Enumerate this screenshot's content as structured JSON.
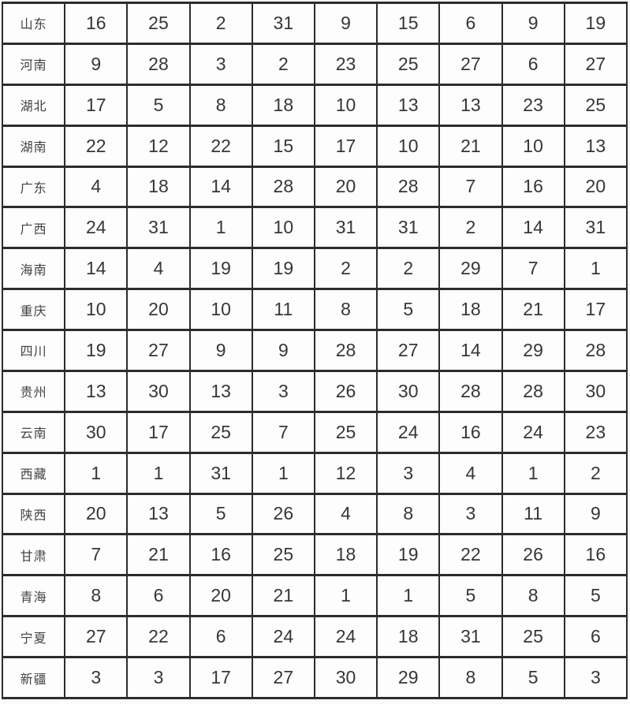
{
  "table": {
    "rows": [
      {
        "province": "山东",
        "values": [
          "16",
          "25",
          "2",
          "31",
          "9",
          "15",
          "6",
          "9",
          "19"
        ]
      },
      {
        "province": "河南",
        "values": [
          "9",
          "28",
          "3",
          "2",
          "23",
          "25",
          "27",
          "6",
          "27"
        ]
      },
      {
        "province": "湖北",
        "values": [
          "17",
          "5",
          "8",
          "18",
          "10",
          "13",
          "13",
          "23",
          "25"
        ]
      },
      {
        "province": "湖南",
        "values": [
          "22",
          "12",
          "22",
          "15",
          "17",
          "10",
          "21",
          "10",
          "13"
        ]
      },
      {
        "province": "广东",
        "values": [
          "4",
          "18",
          "14",
          "28",
          "20",
          "28",
          "7",
          "16",
          "20"
        ]
      },
      {
        "province": "广西",
        "values": [
          "24",
          "31",
          "1",
          "10",
          "31",
          "31",
          "2",
          "14",
          "31"
        ]
      },
      {
        "province": "海南",
        "values": [
          "14",
          "4",
          "19",
          "19",
          "2",
          "2",
          "29",
          "7",
          "1"
        ]
      },
      {
        "province": "重庆",
        "values": [
          "10",
          "20",
          "10",
          "11",
          "8",
          "5",
          "18",
          "21",
          "17"
        ]
      },
      {
        "province": "四川",
        "values": [
          "19",
          "27",
          "9",
          "9",
          "28",
          "27",
          "14",
          "29",
          "28"
        ]
      },
      {
        "province": "贵州",
        "values": [
          "13",
          "30",
          "13",
          "3",
          "26",
          "30",
          "28",
          "28",
          "30"
        ]
      },
      {
        "province": "云南",
        "values": [
          "30",
          "17",
          "25",
          "7",
          "25",
          "24",
          "16",
          "24",
          "23"
        ]
      },
      {
        "province": "西藏",
        "values": [
          "1",
          "1",
          "31",
          "1",
          "12",
          "3",
          "4",
          "1",
          "2"
        ]
      },
      {
        "province": "陕西",
        "values": [
          "20",
          "13",
          "5",
          "26",
          "4",
          "8",
          "3",
          "11",
          "9"
        ]
      },
      {
        "province": "甘肃",
        "values": [
          "7",
          "21",
          "16",
          "25",
          "18",
          "19",
          "22",
          "26",
          "16"
        ]
      },
      {
        "province": "青海",
        "values": [
          "8",
          "6",
          "20",
          "21",
          "1",
          "1",
          "5",
          "8",
          "5"
        ]
      },
      {
        "province": "宁夏",
        "values": [
          "27",
          "22",
          "6",
          "24",
          "24",
          "18",
          "31",
          "25",
          "6"
        ]
      },
      {
        "province": "新疆",
        "values": [
          "3",
          "3",
          "17",
          "27",
          "30",
          "29",
          "8",
          "5",
          "3"
        ]
      }
    ]
  },
  "chart_data": {
    "type": "table",
    "column_headers": [],
    "row_headers": [
      "山东",
      "河南",
      "湖北",
      "湖南",
      "广东",
      "广西",
      "海南",
      "重庆",
      "四川",
      "贵州",
      "云南",
      "西藏",
      "陕西",
      "甘肃",
      "青海",
      "宁夏",
      "新疆"
    ],
    "rows": [
      [
        16,
        25,
        2,
        31,
        9,
        15,
        6,
        9,
        19
      ],
      [
        9,
        28,
        3,
        2,
        23,
        25,
        27,
        6,
        27
      ],
      [
        17,
        5,
        8,
        18,
        10,
        13,
        13,
        23,
        25
      ],
      [
        22,
        12,
        22,
        15,
        17,
        10,
        21,
        10,
        13
      ],
      [
        4,
        18,
        14,
        28,
        20,
        28,
        7,
        16,
        20
      ],
      [
        24,
        31,
        1,
        10,
        31,
        31,
        2,
        14,
        31
      ],
      [
        14,
        4,
        19,
        19,
        2,
        2,
        29,
        7,
        1
      ],
      [
        10,
        20,
        10,
        11,
        8,
        5,
        18,
        21,
        17
      ],
      [
        19,
        27,
        9,
        9,
        28,
        27,
        14,
        29,
        28
      ],
      [
        13,
        30,
        13,
        3,
        26,
        30,
        28,
        28,
        30
      ],
      [
        30,
        17,
        25,
        7,
        25,
        24,
        16,
        24,
        23
      ],
      [
        1,
        1,
        31,
        1,
        12,
        3,
        4,
        1,
        2
      ],
      [
        20,
        13,
        5,
        26,
        4,
        8,
        3,
        11,
        9
      ],
      [
        7,
        21,
        16,
        25,
        18,
        19,
        22,
        26,
        16
      ],
      [
        8,
        6,
        20,
        21,
        1,
        1,
        5,
        8,
        5
      ],
      [
        27,
        22,
        6,
        24,
        24,
        18,
        31,
        25,
        6
      ],
      [
        3,
        3,
        17,
        27,
        30,
        29,
        8,
        5,
        3
      ]
    ]
  },
  "colors": {
    "border": "#2c2c2c",
    "number_text": "#363636",
    "province_text": "#424242",
    "background": "#fbfafa"
  }
}
